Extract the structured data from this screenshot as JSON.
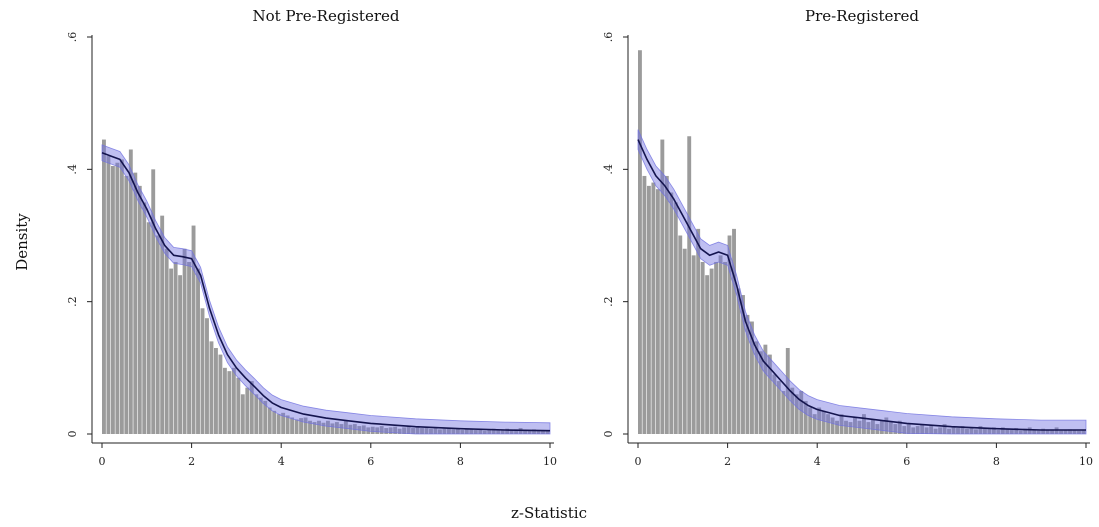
{
  "figure": {
    "ylabel": "Density",
    "xlabel": "z-Statistic"
  },
  "colors": {
    "bar": "#9b9b9b",
    "line": "#14144e",
    "band": "#7070e0",
    "axis": "#222222"
  },
  "chart_data": [
    {
      "type": "bar",
      "title": "Not Pre-Registered",
      "xlim": [
        0,
        10
      ],
      "ylim": [
        0,
        0.6
      ],
      "xticks": [
        0,
        2,
        4,
        6,
        8,
        10
      ],
      "xtick_labels": [
        "0",
        "2",
        "4",
        "6",
        "8",
        "10"
      ],
      "yticks": [
        0,
        0.2,
        0.4,
        0.6
      ],
      "ytick_labels": [
        "0",
        ".2",
        ".4",
        ".6"
      ],
      "bin_width": 0.1,
      "bars": [
        0.445,
        0.42,
        0.405,
        0.41,
        0.415,
        0.39,
        0.43,
        0.395,
        0.375,
        0.35,
        0.32,
        0.4,
        0.3,
        0.33,
        0.28,
        0.25,
        0.26,
        0.24,
        0.28,
        0.26,
        0.315,
        0.25,
        0.19,
        0.175,
        0.14,
        0.13,
        0.12,
        0.1,
        0.095,
        0.1,
        0.085,
        0.06,
        0.07,
        0.08,
        0.06,
        0.055,
        0.05,
        0.04,
        0.035,
        0.03,
        0.032,
        0.028,
        0.025,
        0.022,
        0.024,
        0.025,
        0.02,
        0.018,
        0.02,
        0.017,
        0.02,
        0.016,
        0.018,
        0.015,
        0.02,
        0.014,
        0.015,
        0.012,
        0.013,
        0.01,
        0.011,
        0.01,
        0.012,
        0.009,
        0.01,
        0.011,
        0.008,
        0.01,
        0.012,
        0.009,
        0.01,
        0.009,
        0.011,
        0.008,
        0.009,
        0.007,
        0.008,
        0.009,
        0.007,
        0.008,
        0.006,
        0.008,
        0.007,
        0.006,
        0.008,
        0.005,
        0.007,
        0.008,
        0.006,
        0.007,
        0.008,
        0.006,
        0.007,
        0.009,
        0.005,
        0.006,
        0.007,
        0.006,
        0.005,
        0.006
      ],
      "density": {
        "x": [
          0,
          0.2,
          0.4,
          0.6,
          0.8,
          1.0,
          1.2,
          1.4,
          1.6,
          1.8,
          2.0,
          2.2,
          2.4,
          2.6,
          2.8,
          3.0,
          3.2,
          3.4,
          3.6,
          3.8,
          4.0,
          4.5,
          5.0,
          5.5,
          6.0,
          7.0,
          8.0,
          9.0,
          10.0
        ],
        "y": [
          0.425,
          0.42,
          0.415,
          0.395,
          0.365,
          0.34,
          0.31,
          0.285,
          0.27,
          0.268,
          0.265,
          0.24,
          0.19,
          0.15,
          0.12,
          0.1,
          0.085,
          0.072,
          0.058,
          0.047,
          0.04,
          0.03,
          0.024,
          0.02,
          0.016,
          0.011,
          0.008,
          0.006,
          0.005
        ],
        "band": 0.012
      }
    },
    {
      "type": "bar",
      "title": "Pre-Registered",
      "xlim": [
        0,
        10
      ],
      "ylim": [
        0,
        0.6
      ],
      "xticks": [
        0,
        2,
        4,
        6,
        8,
        10
      ],
      "xtick_labels": [
        "0",
        "2",
        "4",
        "6",
        "8",
        "10"
      ],
      "yticks": [
        0,
        0.2,
        0.4,
        0.6
      ],
      "ytick_labels": [
        "0",
        ".2",
        ".4",
        ".6"
      ],
      "bin_width": 0.1,
      "bars": [
        0.58,
        0.39,
        0.375,
        0.38,
        0.37,
        0.445,
        0.39,
        0.365,
        0.35,
        0.3,
        0.28,
        0.45,
        0.27,
        0.31,
        0.26,
        0.24,
        0.25,
        0.26,
        0.27,
        0.26,
        0.3,
        0.31,
        0.22,
        0.21,
        0.18,
        0.17,
        0.14,
        0.125,
        0.135,
        0.12,
        0.09,
        0.08,
        0.065,
        0.13,
        0.07,
        0.06,
        0.065,
        0.05,
        0.04,
        0.03,
        0.04,
        0.035,
        0.03,
        0.025,
        0.02,
        0.03,
        0.02,
        0.018,
        0.025,
        0.02,
        0.03,
        0.018,
        0.022,
        0.015,
        0.02,
        0.025,
        0.018,
        0.015,
        0.02,
        0.012,
        0.015,
        0.01,
        0.012,
        0.015,
        0.01,
        0.012,
        0.008,
        0.01,
        0.015,
        0.008,
        0.01,
        0.009,
        0.012,
        0.008,
        0.01,
        0.007,
        0.012,
        0.009,
        0.008,
        0.01,
        0.006,
        0.01,
        0.008,
        0.006,
        0.009,
        0.005,
        0.008,
        0.01,
        0.006,
        0.005,
        0.008,
        0.006,
        0.007,
        0.01,
        0.005,
        0.006,
        0.007,
        0.006,
        0.005,
        0.006
      ],
      "density": {
        "x": [
          0,
          0.2,
          0.4,
          0.6,
          0.8,
          1.0,
          1.2,
          1.4,
          1.6,
          1.8,
          2.0,
          2.2,
          2.4,
          2.6,
          2.8,
          3.0,
          3.2,
          3.4,
          3.6,
          3.8,
          4.0,
          4.5,
          5.0,
          5.5,
          6.0,
          7.0,
          8.0,
          9.0,
          10.0
        ],
        "y": [
          0.445,
          0.415,
          0.39,
          0.375,
          0.355,
          0.33,
          0.305,
          0.28,
          0.27,
          0.275,
          0.27,
          0.225,
          0.17,
          0.135,
          0.11,
          0.095,
          0.08,
          0.065,
          0.052,
          0.043,
          0.037,
          0.028,
          0.024,
          0.02,
          0.016,
          0.011,
          0.008,
          0.006,
          0.006
        ],
        "band": 0.015
      }
    }
  ]
}
